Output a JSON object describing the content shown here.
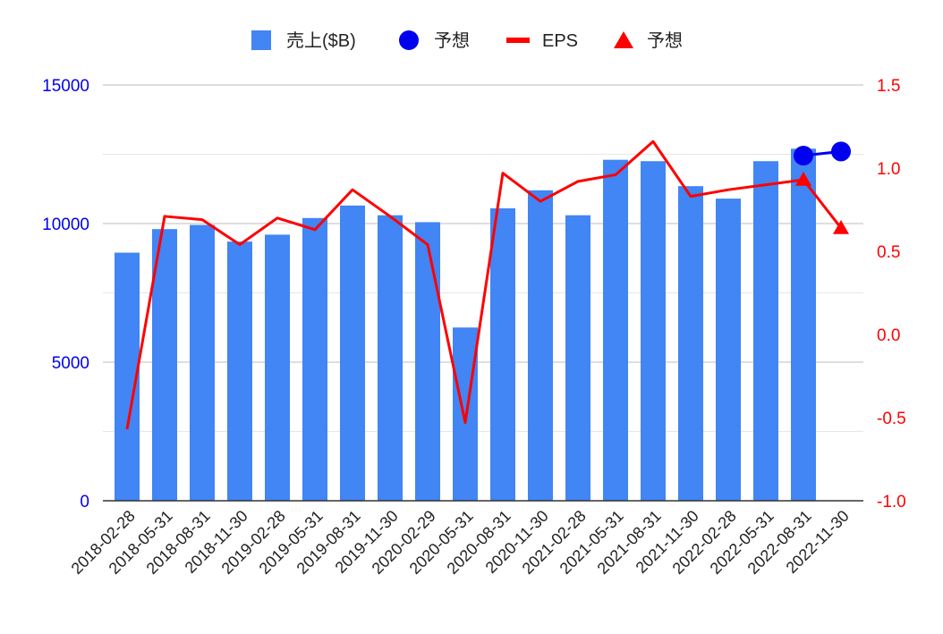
{
  "colors": {
    "sales": "#4285F4",
    "forecast_sales": "#0000EE",
    "eps": "#FF0000",
    "forecast_eps": "#FF0000",
    "left_axis": "#0000EE",
    "right_axis": "#FF0000",
    "grid": "#CCCCCC",
    "text": "#222222"
  },
  "chart_data": {
    "type": "bar",
    "title": "",
    "legend": {
      "position": "top",
      "entries": [
        {
          "label": "売上($B)",
          "shape": "square",
          "color": "#4285F4"
        },
        {
          "label": "予想",
          "shape": "circle",
          "color": "#0000EE"
        },
        {
          "label": "EPS",
          "shape": "line",
          "color": "#FF0000"
        },
        {
          "label": "予想",
          "shape": "triangle",
          "color": "#FF0000"
        }
      ]
    },
    "categories": [
      "2018-02-28",
      "2018-05-31",
      "2018-08-31",
      "2018-11-30",
      "2019-02-28",
      "2019-05-31",
      "2019-08-31",
      "2019-11-30",
      "2020-02-29",
      "2020-05-31",
      "2020-08-31",
      "2020-11-30",
      "2021-02-28",
      "2021-05-31",
      "2021-08-31",
      "2021-11-30",
      "2022-02-28",
      "2022-05-31",
      "2022-08-31",
      "2022-11-30"
    ],
    "y_left": {
      "ylim": [
        0,
        15000
      ],
      "ticks": [
        0,
        5000,
        10000,
        15000
      ],
      "tick_labels": [
        "0",
        "5000",
        "10000",
        "15000"
      ],
      "minor_grid": [
        2500,
        7500,
        12500
      ]
    },
    "y_right": {
      "ylim": [
        -1.0,
        1.5
      ],
      "ticks": [
        -1.0,
        -0.5,
        0.0,
        0.5,
        1.0,
        1.5
      ],
      "tick_labels": [
        "-1.0",
        "-0.5",
        "0.0",
        "0.5",
        "1.0",
        "1.5"
      ]
    },
    "series": [
      {
        "name": "売上($B)",
        "type": "bar",
        "axis": "left",
        "values": [
          8950,
          9800,
          9950,
          9350,
          9600,
          10200,
          10650,
          10300,
          10050,
          6250,
          10550,
          11200,
          10300,
          12300,
          12250,
          11350,
          10900,
          12250,
          12700,
          null
        ]
      },
      {
        "name": "予想",
        "type": "line-markers",
        "axis": "left",
        "values": [
          null,
          null,
          null,
          null,
          null,
          null,
          null,
          null,
          null,
          null,
          null,
          null,
          null,
          null,
          null,
          null,
          null,
          null,
          12450,
          12600
        ]
      },
      {
        "name": "EPS",
        "type": "line",
        "axis": "right",
        "values": [
          -0.57,
          0.71,
          0.69,
          0.54,
          0.7,
          0.63,
          0.87,
          0.71,
          0.54,
          -0.53,
          0.97,
          0.8,
          0.92,
          0.96,
          1.16,
          0.83,
          0.87,
          0.9,
          0.93,
          null
        ]
      },
      {
        "name": "予想",
        "type": "triangle-markers",
        "axis": "right",
        "values": [
          null,
          null,
          null,
          null,
          null,
          null,
          null,
          null,
          null,
          null,
          null,
          null,
          null,
          null,
          null,
          null,
          null,
          null,
          0.93,
          0.64
        ]
      }
    ]
  }
}
